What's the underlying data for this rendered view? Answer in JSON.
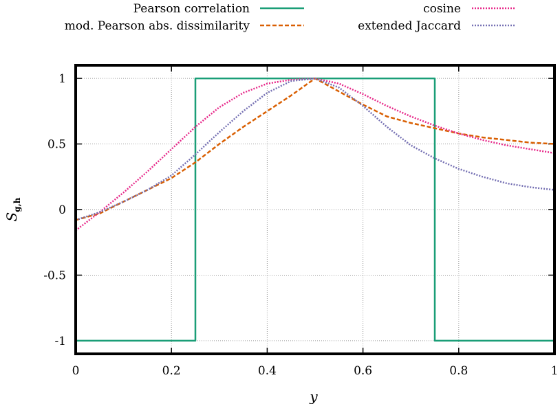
{
  "chart_data": {
    "type": "line",
    "title": "",
    "xlabel": "y",
    "ylabel": {
      "main": "S",
      "subscript": "g,h"
    },
    "xlim": [
      0,
      1
    ],
    "ylim": [
      -1.1,
      1.1
    ],
    "xticks": [
      0,
      0.2,
      0.4,
      0.6,
      0.8,
      1
    ],
    "xtick_labels": [
      "0",
      "0.2",
      "0.4",
      "0.6",
      "0.8",
      "1"
    ],
    "yticks": [
      -1,
      -0.5,
      0,
      0.5,
      1
    ],
    "ytick_labels": [
      "-1",
      "-0.5",
      "0",
      "0.5",
      "1"
    ],
    "grid": true,
    "legend_position": "top (above plot, two columns)",
    "series": [
      {
        "name": "Pearson correlation",
        "color": "#1a9e77",
        "dash": "solid",
        "x": [
          0,
          0.25,
          0.25,
          0.75,
          0.75,
          1
        ],
        "y": [
          -1,
          -1,
          1,
          1,
          -1,
          -1
        ]
      },
      {
        "name": "mod. Pearson abs. dissimilarity",
        "color": "#d95f02",
        "dash": "dashed",
        "x": [
          0,
          0.05,
          0.1,
          0.15,
          0.2,
          0.25,
          0.3,
          0.35,
          0.4,
          0.45,
          0.5,
          0.55,
          0.6,
          0.65,
          0.7,
          0.75,
          0.8,
          0.85,
          0.9,
          0.95,
          1
        ],
        "y": [
          -0.08,
          -0.03,
          0.06,
          0.15,
          0.24,
          0.36,
          0.5,
          0.63,
          0.75,
          0.87,
          1.0,
          0.9,
          0.8,
          0.71,
          0.66,
          0.62,
          0.58,
          0.55,
          0.53,
          0.51,
          0.5
        ]
      },
      {
        "name": "cosine",
        "color": "#e7298a",
        "dash": "dotted",
        "x": [
          0,
          0.05,
          0.1,
          0.15,
          0.2,
          0.25,
          0.3,
          0.35,
          0.4,
          0.45,
          0.5,
          0.55,
          0.6,
          0.65,
          0.7,
          0.75,
          0.8,
          0.85,
          0.9,
          0.95,
          1
        ],
        "y": [
          -0.16,
          -0.02,
          0.13,
          0.29,
          0.46,
          0.63,
          0.78,
          0.89,
          0.96,
          0.99,
          1.0,
          0.96,
          0.88,
          0.79,
          0.71,
          0.64,
          0.58,
          0.53,
          0.49,
          0.46,
          0.43
        ]
      },
      {
        "name": "extended Jaccard",
        "color": "#7570b3",
        "dash": "dotted",
        "x": [
          0,
          0.05,
          0.1,
          0.15,
          0.2,
          0.25,
          0.3,
          0.35,
          0.4,
          0.45,
          0.5,
          0.55,
          0.6,
          0.65,
          0.7,
          0.75,
          0.8,
          0.85,
          0.9,
          0.95,
          1
        ],
        "y": [
          -0.08,
          -0.02,
          0.06,
          0.15,
          0.26,
          0.42,
          0.59,
          0.75,
          0.89,
          0.98,
          1.0,
          0.93,
          0.79,
          0.63,
          0.49,
          0.39,
          0.31,
          0.25,
          0.2,
          0.17,
          0.15
        ]
      }
    ]
  }
}
